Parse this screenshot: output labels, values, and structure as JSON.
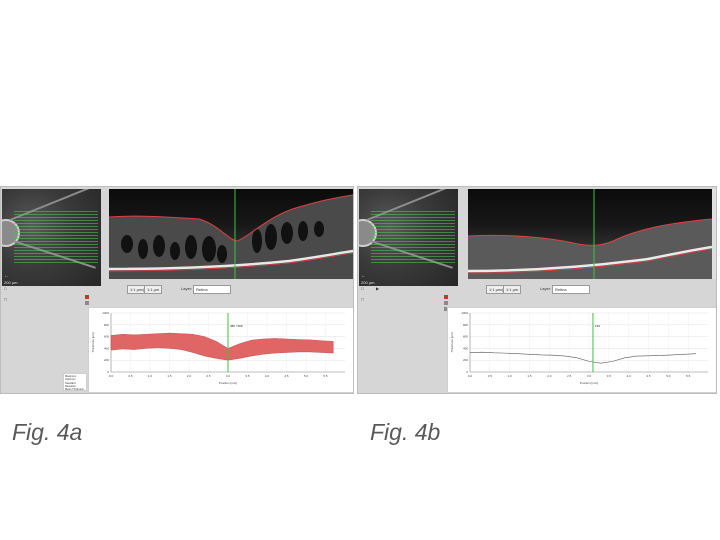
{
  "panels": [
    {
      "id": "a",
      "caption": "Fig. 4a",
      "fundus_scale": "200 µm",
      "toolbar": {
        "view_a": "1:1 µm/px",
        "view_b": "1:1 µm",
        "layer_label": "Layer:",
        "layer_value": "Retina"
      },
      "chart": {
        "marker_label": "380 / 566"
      },
      "legend": [
        "Maximum",
        "Optimum",
        "Standard Deviation",
        "Mean Thickness"
      ]
    },
    {
      "id": "b",
      "caption": "Fig. 4b",
      "fundus_scale": "200 µm",
      "toolbar": {
        "view_a": "1:1 µm/px",
        "view_b": "1:1 µm",
        "layer_label": "Layer:",
        "layer_value": "Retina"
      },
      "chart": {
        "marker_label": "193"
      }
    }
  ],
  "chart_data": [
    {
      "type": "area",
      "ylabel": "Thickness [µm]",
      "xlabel": "Position [mm]",
      "ylim": [
        0,
        1000
      ],
      "xlim": [
        0,
        6.0
      ],
      "yticks": [
        "0",
        "200",
        "400",
        "600",
        "800",
        "1000"
      ],
      "xticks": [
        "0.0",
        "0.5",
        "1.0",
        "1.5",
        "2.0",
        "2.5",
        "3.0",
        "3.5",
        "4.0",
        "4.5",
        "5.0",
        "5.5"
      ],
      "marker_x": 3.0,
      "grid": true,
      "fill_color": "#e06666",
      "x": [
        0.0,
        0.3,
        0.6,
        0.9,
        1.2,
        1.5,
        1.8,
        2.1,
        2.4,
        2.7,
        3.0,
        3.3,
        3.6,
        3.9,
        4.2,
        4.5,
        4.8,
        5.1,
        5.4,
        5.7
      ],
      "series": [
        {
          "values": [
            620,
            640,
            630,
            640,
            650,
            660,
            650,
            640,
            600,
            520,
            400,
            480,
            540,
            560,
            570,
            560,
            550,
            545,
            530,
            520
          ]
        },
        {
          "values": [
            370,
            390,
            380,
            400,
            410,
            400,
            380,
            330,
            270,
            230,
            200,
            230,
            270,
            300,
            320,
            330,
            340,
            340,
            330,
            320
          ]
        }
      ]
    },
    {
      "type": "line",
      "ylabel": "Thickness [µm]",
      "xlabel": "Position [mm]",
      "ylim": [
        0,
        1000
      ],
      "xlim": [
        0,
        6.0
      ],
      "yticks": [
        "0",
        "200",
        "400",
        "600",
        "800",
        "1000"
      ],
      "xticks": [
        "0.0",
        "0.5",
        "1.0",
        "1.5",
        "2.0",
        "2.5",
        "3.0",
        "3.5",
        "4.0",
        "4.5",
        "5.0",
        "5.5"
      ],
      "marker_x": 3.1,
      "grid": true,
      "line_color": "#555555",
      "x": [
        0.0,
        0.3,
        0.6,
        0.9,
        1.2,
        1.5,
        1.8,
        2.1,
        2.4,
        2.7,
        3.0,
        3.3,
        3.6,
        3.9,
        4.2,
        4.5,
        4.8,
        5.1,
        5.4,
        5.7
      ],
      "series": [
        {
          "values": [
            330,
            335,
            325,
            320,
            310,
            300,
            290,
            285,
            270,
            240,
            180,
            150,
            180,
            240,
            270,
            275,
            280,
            290,
            300,
            310
          ]
        }
      ]
    }
  ]
}
